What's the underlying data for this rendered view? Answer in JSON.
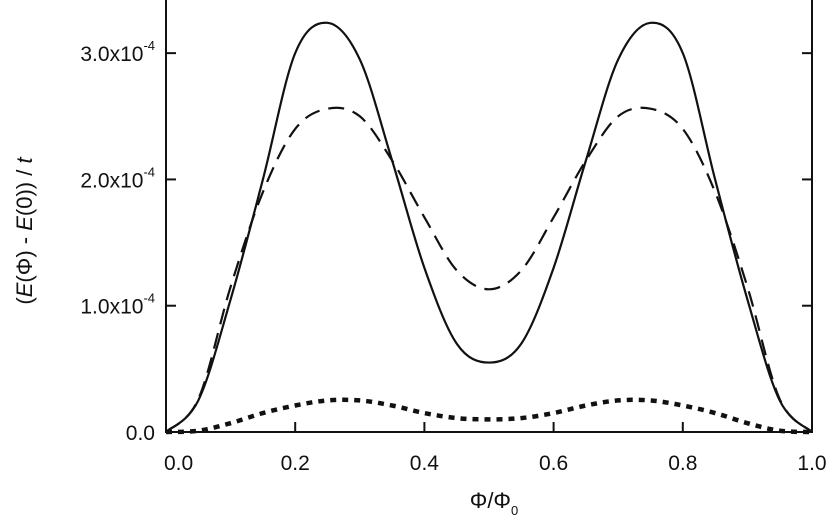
{
  "chart_data": {
    "type": "line",
    "xlabel": "Φ/Φ0",
    "ylabel": "(E(Φ) - E(0)) / t",
    "xlim": [
      0,
      1
    ],
    "ylim": [
      0,
      0.00035
    ],
    "grid": false,
    "x_ticks": [
      {
        "value": 0.0,
        "label": "0.0"
      },
      {
        "value": 0.2,
        "label": "0.2"
      },
      {
        "value": 0.4,
        "label": "0.4"
      },
      {
        "value": 0.6,
        "label": "0.6"
      },
      {
        "value": 0.8,
        "label": "0.8"
      },
      {
        "value": 1.0,
        "label": "1.0"
      }
    ],
    "y_ticks": [
      {
        "value": 0.0,
        "label": "0.0"
      },
      {
        "value": 0.0001,
        "label": "1.0x10",
        "exponent": "-4"
      },
      {
        "value": 0.0002,
        "label": "2.0x10",
        "exponent": "-4"
      },
      {
        "value": 0.0003,
        "label": "3.0x10",
        "exponent": "-4"
      }
    ],
    "x": [
      0.0,
      0.05,
      0.1,
      0.15,
      0.2,
      0.25,
      0.3,
      0.35,
      0.4,
      0.45,
      0.5,
      0.55,
      0.6,
      0.65,
      0.7,
      0.75,
      0.8,
      0.85,
      0.9,
      0.95,
      1.0
    ],
    "series": [
      {
        "style": "solid",
        "color": "#111111",
        "values": [
          0.0,
          2.5e-05,
          0.000105,
          0.0002,
          0.0003,
          0.000324,
          0.000295,
          0.000215,
          0.00013,
          7e-05,
          5.5e-05,
          7e-05,
          0.00013,
          0.000215,
          0.000295,
          0.000324,
          0.0003,
          0.0002,
          0.000105,
          2.5e-05,
          0.0
        ]
      },
      {
        "style": "dashed",
        "color": "#111111",
        "values": [
          0.0,
          2.6e-05,
          0.000115,
          0.00019,
          0.00024,
          0.000256,
          0.00025,
          0.000215,
          0.00017,
          0.000128,
          0.000113,
          0.000128,
          0.00017,
          0.000215,
          0.00025,
          0.000256,
          0.00024,
          0.00019,
          0.000115,
          2.6e-05,
          0.0
        ]
      },
      {
        "style": "dotted",
        "color": "#111111",
        "values": [
          0.0,
          1e-06,
          7e-06,
          1.5e-05,
          2.1e-05,
          2.5e-05,
          2.5e-05,
          2.1e-05,
          1.5e-05,
          1.1e-05,
          1e-05,
          1.1e-05,
          1.5e-05,
          2.1e-05,
          2.5e-05,
          2.5e-05,
          2.1e-05,
          1.5e-05,
          7e-06,
          1e-06,
          0.0
        ]
      }
    ]
  }
}
